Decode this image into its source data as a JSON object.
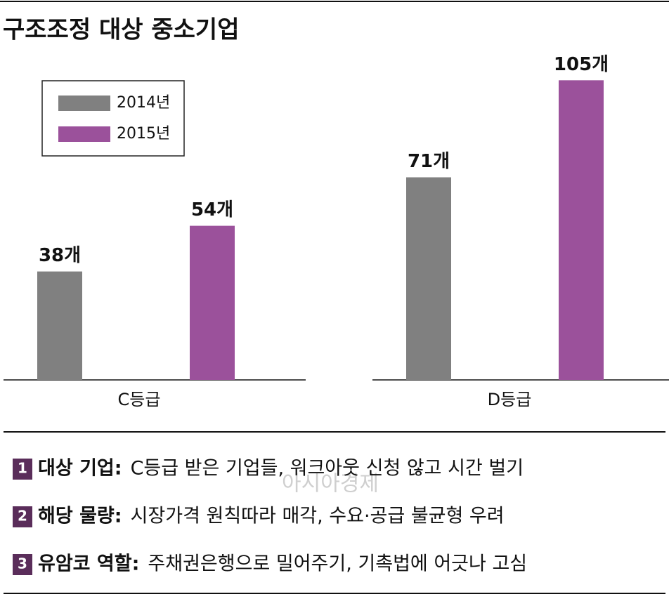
{
  "chart_data": {
    "type": "bar",
    "title": "구조조정 대상 중소기업",
    "categories": [
      "C등급",
      "D등급"
    ],
    "series": [
      {
        "name": "2014년",
        "color": "#808080",
        "values": [
          38,
          71
        ],
        "value_labels": [
          "38개",
          "71개"
        ]
      },
      {
        "name": "2015년",
        "color": "#9b519b",
        "values": [
          54,
          105
        ],
        "value_labels": [
          "54개",
          "105개"
        ]
      }
    ],
    "ylim": [
      0,
      110
    ],
    "legend": "upper-left"
  },
  "notes": [
    {
      "number": "1",
      "label": "대상 기업:",
      "text": "C등급 받은 기업들, 워크아웃 신청 않고 시간 벌기"
    },
    {
      "number": "2",
      "label": "해당 물량:",
      "text": "시장가격 원칙따라 매각, 수요·공급 불균형 우려"
    },
    {
      "number": "3",
      "label": "유암코 역할:",
      "text": "주채권은행으로 밀어주기, 기촉법에 어긋나 고심"
    }
  ],
  "watermark": "아시아경제"
}
